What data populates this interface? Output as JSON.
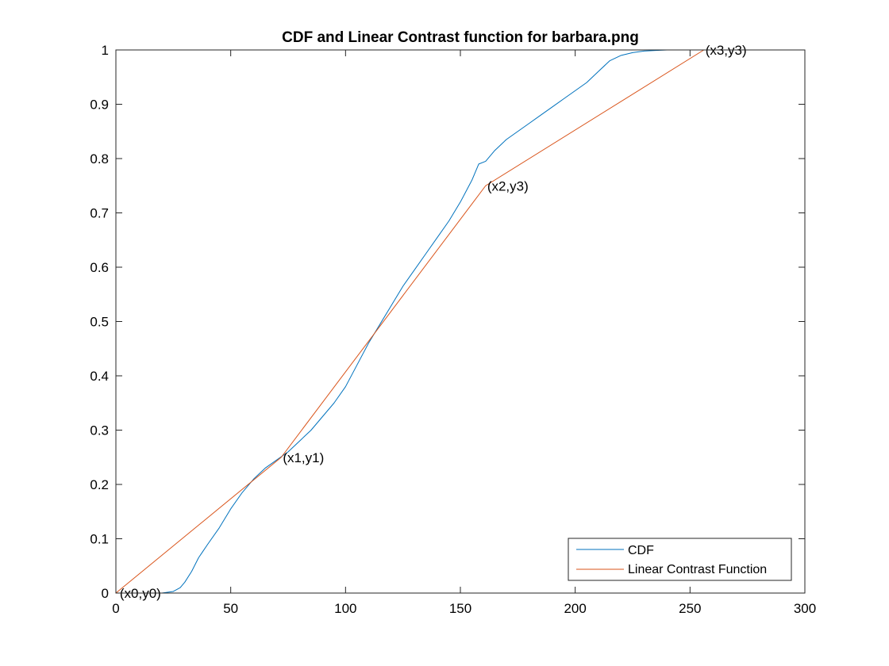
{
  "chart_data": {
    "type": "line",
    "title": "CDF and Linear Contrast function for barbara.png",
    "xlabel": "",
    "ylabel": "",
    "xlim": [
      0,
      300
    ],
    "ylim": [
      0,
      1
    ],
    "xticks": [
      0,
      50,
      100,
      150,
      200,
      250,
      300
    ],
    "xtick_labels": [
      "0",
      "50",
      "100",
      "150",
      "200",
      "250",
      "300"
    ],
    "yticks": [
      0,
      0.1,
      0.2,
      0.3,
      0.4,
      0.5,
      0.6,
      0.7,
      0.8,
      0.9,
      1
    ],
    "ytick_labels": [
      "0",
      "0.1",
      "0.2",
      "0.3",
      "0.4",
      "0.5",
      "0.6",
      "0.7",
      "0.8",
      "0.9",
      "1"
    ],
    "grid": false,
    "legend_position": "bottom-right",
    "series": [
      {
        "name": "CDF",
        "color": "#0072BD",
        "x": [
          0,
          10,
          20,
          25,
          28,
          30,
          33,
          36,
          40,
          45,
          50,
          55,
          60,
          65,
          70,
          75,
          80,
          85,
          90,
          95,
          100,
          105,
          110,
          115,
          120,
          125,
          130,
          135,
          140,
          145,
          150,
          155,
          158,
          161,
          165,
          170,
          175,
          180,
          185,
          190,
          195,
          200,
          205,
          210,
          215,
          220,
          225,
          230,
          235,
          240,
          245,
          250,
          255
        ],
        "y": [
          0,
          0,
          0,
          0.003,
          0.01,
          0.02,
          0.04,
          0.065,
          0.09,
          0.12,
          0.155,
          0.185,
          0.21,
          0.23,
          0.245,
          0.26,
          0.28,
          0.3,
          0.325,
          0.35,
          0.38,
          0.42,
          0.46,
          0.495,
          0.53,
          0.565,
          0.595,
          0.625,
          0.655,
          0.685,
          0.72,
          0.76,
          0.79,
          0.795,
          0.815,
          0.835,
          0.85,
          0.865,
          0.88,
          0.895,
          0.91,
          0.925,
          0.94,
          0.96,
          0.98,
          0.99,
          0.995,
          0.998,
          0.999,
          1,
          1,
          1,
          1
        ]
      },
      {
        "name": "Linear Contrast Function",
        "color": "#D95319",
        "x": [
          0,
          72,
          161,
          256
        ],
        "y": [
          0,
          0.25,
          0.75,
          1
        ]
      }
    ],
    "annotations": [
      {
        "text": "(x0,y0)",
        "x": 1,
        "y": 0
      },
      {
        "text": "(x1,y1)",
        "x": 72,
        "y": 0.25
      },
      {
        "text": "(x2,y3)",
        "x": 161,
        "y": 0.75
      },
      {
        "text": "(x3,y3)",
        "x": 256,
        "y": 1
      }
    ]
  }
}
